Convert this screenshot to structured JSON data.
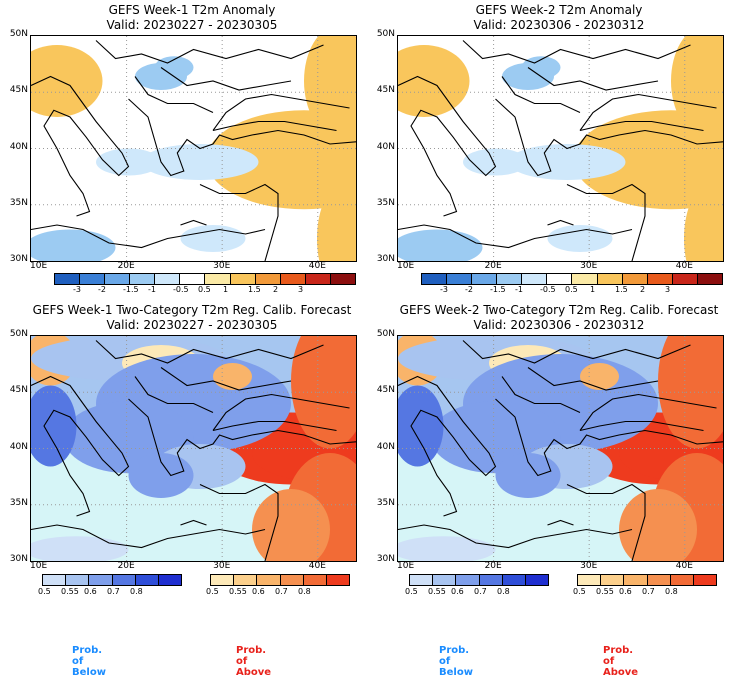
{
  "panels": [
    {
      "title": "GEFS Week-1 T2m Anomaly",
      "valid": "Valid: 20230227 - 20230305"
    },
    {
      "title": "GEFS Week-2 T2m Anomaly",
      "valid": "Valid: 20230306 - 20230312"
    },
    {
      "title": "GEFS Week-1 Two-Category T2m Reg. Calib. Forecast",
      "valid": "Valid: 20230227 - 20230305"
    },
    {
      "title": "GEFS Week-2 Two-Category T2m Reg. Calib. Forecast",
      "valid": "Valid: 20230306 - 20230312"
    }
  ],
  "lat_labels": [
    "50N",
    "45N",
    "40N",
    "35N",
    "30N"
  ],
  "lon_labels": [
    "10E",
    "20E",
    "30E",
    "40E"
  ],
  "anomaly_colorbar": {
    "labels": [
      "-3",
      "-2",
      "-1.5",
      "-1",
      "-0.5",
      "0.5",
      "1",
      "1.5",
      "2",
      "3"
    ],
    "colors": [
      "#1f5fbf",
      "#3a7fd6",
      "#6aa8e8",
      "#9ccbf2",
      "#cfe8fb",
      "#ffffff",
      "#fbeaa6",
      "#f9c65c",
      "#f29a3a",
      "#e85a1c",
      "#c8261a",
      "#8c0f0f"
    ]
  },
  "below_colorbar": {
    "labels": [
      "0.5",
      "0.55",
      "0.6",
      "0.7",
      "0.8"
    ],
    "colors": [
      "#cfe0f7",
      "#a8c4f0",
      "#7f9feb",
      "#5577e2",
      "#2f4ed8",
      "#1f2fd0"
    ]
  },
  "above_colorbar": {
    "labels": [
      "0.5",
      "0.55",
      "0.6",
      "0.7",
      "0.8"
    ],
    "colors": [
      "#fde9b8",
      "#fcd08c",
      "#f9b46a",
      "#f59050",
      "#f26b36",
      "#ee3b1e"
    ]
  },
  "legend": {
    "below": "Prob. of Below",
    "above": "Prob. of Above",
    "below_color": "#1a8cff",
    "above_color": "#e8221c"
  },
  "colors": {
    "ocean": "#d6f5f7",
    "land_neutral": "#ffffff"
  }
}
